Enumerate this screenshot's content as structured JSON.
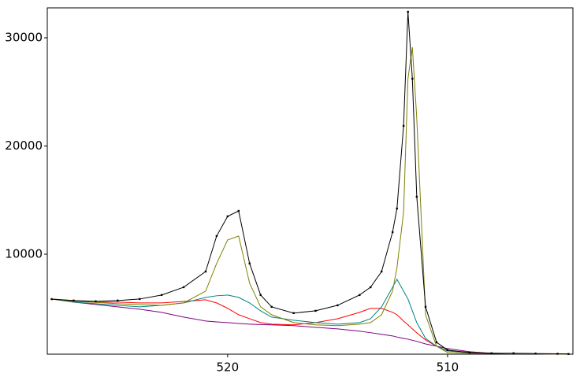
{
  "chart_data": {
    "type": "line",
    "xlim": [
      528.2,
      504.3
    ],
    "ylim": [
      764,
      32764
    ],
    "xticks": [
      520,
      510
    ],
    "yticks": [
      10000,
      20000,
      30000
    ],
    "x": [
      528,
      527,
      526,
      525,
      524,
      523,
      522,
      521,
      520.5,
      520,
      519.5,
      519,
      518.5,
      518,
      517,
      516,
      515,
      514,
      513.5,
      513,
      512.5,
      512.3,
      512,
      511.8,
      511.6,
      511.4,
      511,
      510.5,
      510,
      509,
      508,
      507,
      506,
      505,
      504.5
    ],
    "series": [
      {
        "color": "#800080",
        "marker": false,
        "values": [
          5860,
          5570,
          5350,
          5140,
          4920,
          4630,
          4190,
          3830,
          3750,
          3680,
          3600,
          3540,
          3500,
          3470,
          3400,
          3250,
          3100,
          2890,
          2750,
          2600,
          2450,
          2350,
          2220,
          2150,
          2050,
          1950,
          1710,
          1500,
          1280,
          990,
          850,
          820,
          800,
          780,
          780
        ]
      },
      {
        "color": "#ff0000",
        "marker": false,
        "values": [
          5860,
          5720,
          5570,
          5570,
          5500,
          5500,
          5640,
          5790,
          5500,
          5000,
          4410,
          4040,
          3680,
          3540,
          3470,
          3680,
          4040,
          4630,
          5000,
          5000,
          4630,
          4410,
          3830,
          3470,
          3100,
          2740,
          2080,
          1500,
          1060,
          920,
          850,
          820,
          800,
          780,
          780
        ]
      },
      {
        "color": "#008080",
        "marker": false,
        "values": [
          5860,
          5570,
          5430,
          5280,
          5140,
          5280,
          5500,
          6010,
          6160,
          6230,
          6010,
          5500,
          4770,
          4190,
          3900,
          3680,
          3540,
          3680,
          4040,
          5140,
          6950,
          7680,
          6590,
          5860,
          4770,
          3680,
          2220,
          1500,
          1060,
          920,
          850,
          820,
          800,
          780,
          780
        ]
      },
      {
        "color": "#808000",
        "marker": false,
        "values": [
          5860,
          5650,
          5550,
          5430,
          5350,
          5280,
          5500,
          6590,
          9140,
          11320,
          11680,
          7320,
          5140,
          4410,
          3680,
          3470,
          3400,
          3540,
          3680,
          4410,
          6590,
          8770,
          13860,
          26220,
          29130,
          22580,
          4410,
          1500,
          920,
          850,
          850,
          820,
          800,
          780,
          780
        ]
      },
      {
        "color": "#000000",
        "marker": true,
        "values": [
          5850,
          5720,
          5650,
          5720,
          5860,
          6230,
          6950,
          8400,
          11680,
          13500,
          14000,
          9140,
          6230,
          5140,
          4560,
          4770,
          5280,
          6230,
          6950,
          8400,
          12040,
          14220,
          21860,
          32400,
          26220,
          15310,
          5140,
          1860,
          1140,
          920,
          850,
          850,
          820,
          800,
          780
        ]
      }
    ]
  }
}
